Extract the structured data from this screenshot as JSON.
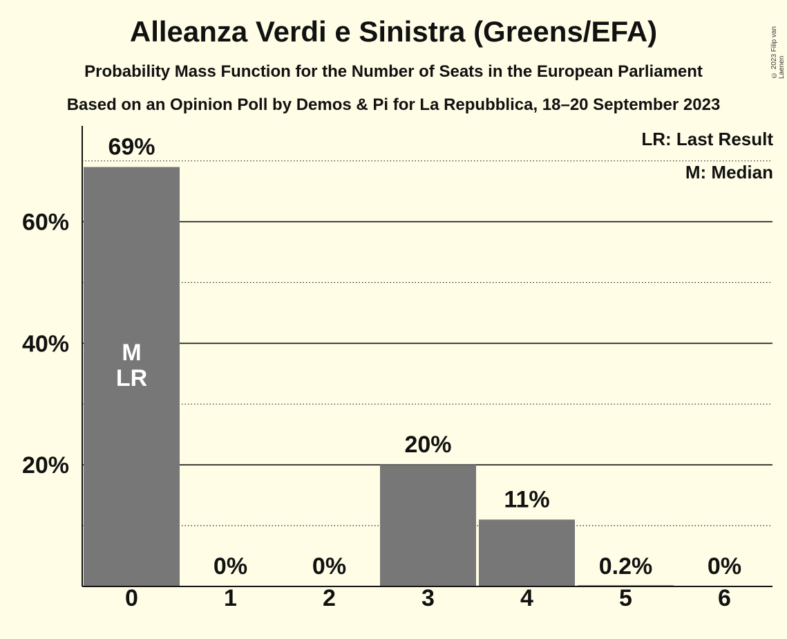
{
  "chart_data": {
    "type": "bar",
    "title": "Alleanza Verdi e Sinistra (Greens/EFA)",
    "subtitle": "Probability Mass Function for the Number of Seats in the European Parliament",
    "subtitle2": "Based on an Opinion Poll by Demos & Pi for La Repubblica, 18–20 September 2023",
    "copyright": "© 2023 Filip van Laenen",
    "categories": [
      "0",
      "1",
      "2",
      "3",
      "4",
      "5",
      "6"
    ],
    "values": [
      69,
      0,
      0,
      20,
      11,
      0.2,
      0
    ],
    "value_labels": [
      "69%",
      "0%",
      "0%",
      "20%",
      "11%",
      "0.2%",
      "0%"
    ],
    "y_ticks": [
      20,
      40,
      60
    ],
    "y_tick_labels": [
      "20%",
      "40%",
      "60%"
    ],
    "y_minor_ticks": [
      10,
      30,
      50,
      70
    ],
    "ylim": [
      0,
      75
    ],
    "bar_color": "#777777",
    "median_label": "M",
    "last_result_label": "LR",
    "legend": {
      "position": "top-right",
      "items": [
        "LR: Last Result",
        "M: Median"
      ]
    }
  }
}
